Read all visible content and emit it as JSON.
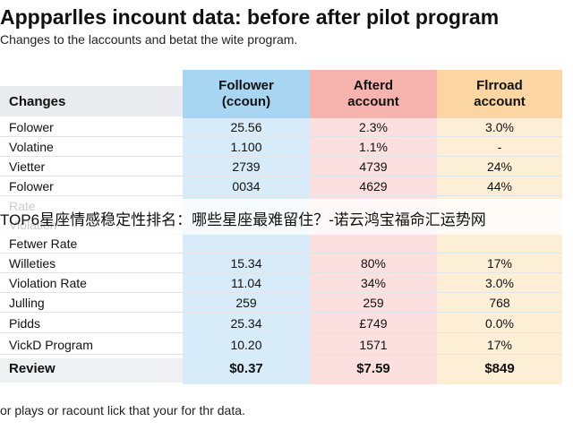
{
  "title": "Appparlles incount data: before after pilot program",
  "subtitle": "Changes to the laccounts and betat the wite program.",
  "chart_data": {
    "type": "table",
    "columns": [
      "Changes",
      "Follower\n(ccoun)",
      "Afterd\naccount",
      "Flrroad\naccount"
    ],
    "rows": [
      {
        "label": "Folower",
        "values": [
          "25.56",
          "2.3%",
          "3.0%"
        ]
      },
      {
        "label": "Volatine",
        "values": [
          "1.100",
          "1.1%",
          "-"
        ]
      },
      {
        "label": "Vietter",
        "values": [
          "2739",
          "4739",
          "24%"
        ]
      },
      {
        "label": "Folower",
        "values": [
          "0034",
          "4629",
          "44%"
        ]
      },
      {
        "label": "Rate",
        "values": [
          "",
          "",
          ""
        ]
      },
      {
        "label": "Violation",
        "values": [
          "",
          "",
          ""
        ]
      },
      {
        "label": "Fetwer Rate",
        "values": [
          "",
          "",
          ""
        ]
      },
      {
        "label": "Willeties",
        "values": [
          "15.34",
          "80%",
          "17%"
        ]
      },
      {
        "label": "Violation Rate",
        "values": [
          "11.04",
          "34%",
          "3.0%"
        ]
      },
      {
        "label": "Julling",
        "values": [
          "259",
          "259",
          "768"
        ]
      },
      {
        "label": "Pidds",
        "values": [
          "25.34",
          "£749",
          "0.0%"
        ]
      },
      {
        "label": "VickD Program",
        "values": [
          "10.20",
          "1571",
          "17%"
        ]
      },
      {
        "label": "Review",
        "values": [
          "$0.37",
          "$7.59",
          "$849"
        ]
      }
    ]
  },
  "watermark": "TOP6星座情感稳定性排名：哪些星座最难留住？-诺云鸿宝福命汇运势网",
  "footer": "or plays or racount lick that your for thr data.",
  "colors": {
    "follower_header": "#a8d6f2",
    "follower_column": "#d7ecf8",
    "after_header": "#f7b4ae",
    "after_column": "#fbe0df",
    "fir_header": "#fbd6a2",
    "fir_column": "#fdeed6"
  }
}
